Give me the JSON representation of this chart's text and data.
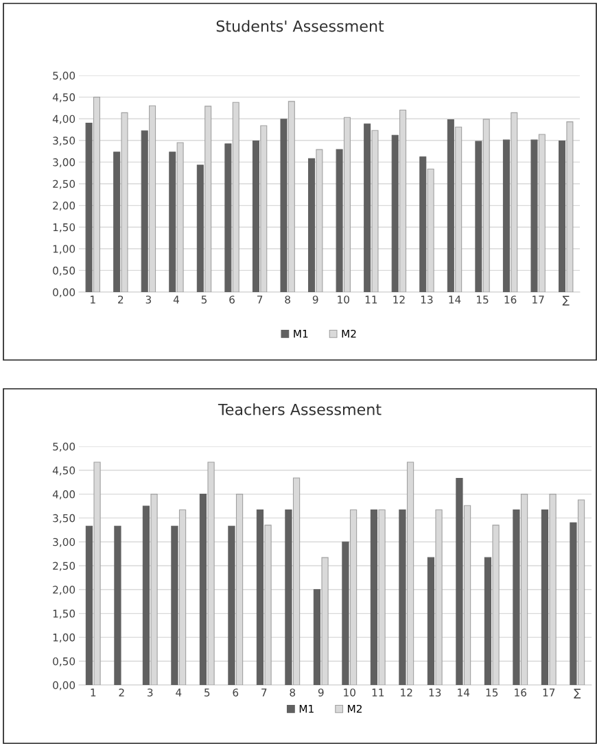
{
  "chart_data": [
    {
      "type": "bar",
      "title": "Students' Assessment",
      "categories": [
        "1",
        "2",
        "3",
        "4",
        "5",
        "6",
        "7",
        "8",
        "9",
        "10",
        "11",
        "12",
        "13",
        "14",
        "15",
        "16",
        "17",
        "∑"
      ],
      "series": [
        {
          "name": "M1",
          "color": "#606060",
          "values": [
            3.9,
            3.23,
            3.72,
            3.23,
            2.93,
            3.42,
            3.49,
            3.99,
            3.08,
            3.29,
            3.88,
            3.62,
            3.12,
            3.98,
            3.48,
            3.51,
            3.51,
            3.49
          ]
        },
        {
          "name": "M2",
          "color": "#d9d9d9",
          "values": [
            4.5,
            4.14,
            4.3,
            3.45,
            4.29,
            4.38,
            3.84,
            4.4,
            3.29,
            4.03,
            3.73,
            4.2,
            2.84,
            3.81,
            3.99,
            4.14,
            3.64,
            3.93
          ]
        }
      ],
      "ylim": [
        0,
        5
      ],
      "yticks": [
        {
          "value": 0,
          "label": "0,00"
        },
        {
          "value": 0.5,
          "label": "0,50"
        },
        {
          "value": 1,
          "label": "1,00"
        },
        {
          "value": 1.5,
          "label": "1,50"
        },
        {
          "value": 2,
          "label": "2,00"
        },
        {
          "value": 2.5,
          "label": "2,50"
        },
        {
          "value": 3,
          "label": "3,00"
        },
        {
          "value": 3.5,
          "label": "3,50"
        },
        {
          "value": 4,
          "label": "4,00"
        },
        {
          "value": 4.5,
          "label": "4,50"
        },
        {
          "value": 5,
          "label": "5,00"
        }
      ],
      "grid": "y",
      "legend": "bottom"
    },
    {
      "type": "bar",
      "title": "Teachers Assessment",
      "categories": [
        "1",
        "2",
        "3",
        "4",
        "5",
        "6",
        "7",
        "8",
        "9",
        "10",
        "11",
        "12",
        "13",
        "14",
        "15",
        "16",
        "17",
        "∑"
      ],
      "series": [
        {
          "name": "M1",
          "color": "#606060",
          "values": [
            3.33,
            3.33,
            3.75,
            3.33,
            4.0,
            3.33,
            3.67,
            3.67,
            2.0,
            3.0,
            3.67,
            3.67,
            2.67,
            4.33,
            2.67,
            3.67,
            3.67,
            3.4
          ]
        },
        {
          "name": "M2",
          "color": "#d9d9d9",
          "values": [
            4.67,
            null,
            4.0,
            3.67,
            4.67,
            4.0,
            3.35,
            4.34,
            2.67,
            3.67,
            3.67,
            4.67,
            3.67,
            3.76,
            3.35,
            4.0,
            4.0,
            3.88
          ]
        }
      ],
      "ylim": [
        0,
        5
      ],
      "yticks": [
        {
          "value": 0,
          "label": "0,00"
        },
        {
          "value": 0.5,
          "label": "0,50"
        },
        {
          "value": 1,
          "label": "1,00"
        },
        {
          "value": 1.5,
          "label": "1,50"
        },
        {
          "value": 2,
          "label": "2,00"
        },
        {
          "value": 2.5,
          "label": "2,50"
        },
        {
          "value": 3,
          "label": "3,00"
        },
        {
          "value": 3.5,
          "label": "3,50"
        },
        {
          "value": 4,
          "label": "4,00"
        },
        {
          "value": 4.5,
          "label": "4,50"
        },
        {
          "value": 5,
          "label": "5,00"
        }
      ],
      "grid": "y",
      "legend": "bottom"
    }
  ]
}
